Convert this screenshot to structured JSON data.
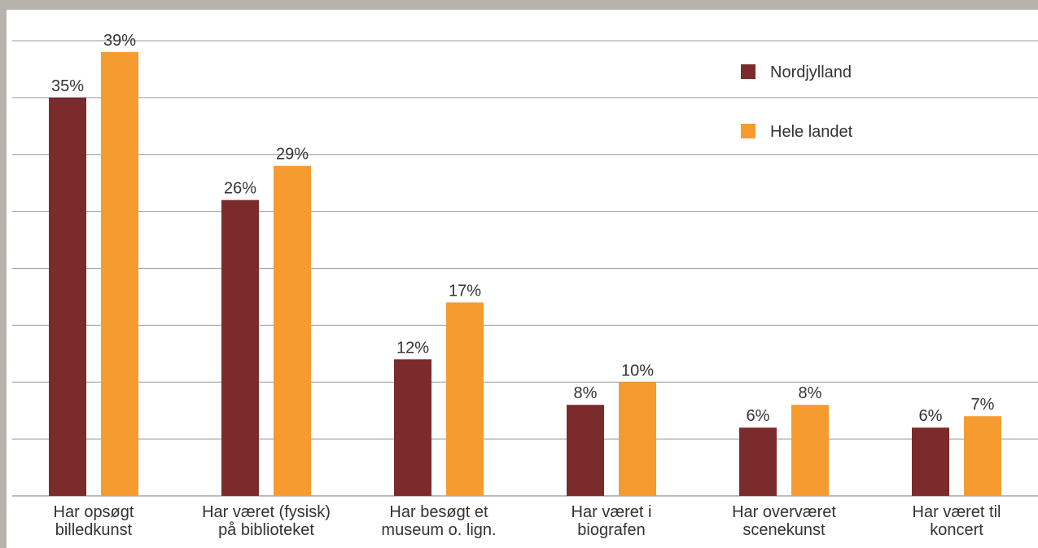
{
  "chart_data": {
    "type": "bar",
    "categories": [
      [
        "Har opsøgt",
        "billedkunst"
      ],
      [
        "Har været (fysisk)",
        "på biblioteket"
      ],
      [
        "Har besøgt et",
        "museum o. lign."
      ],
      [
        "Har været i",
        "biografen"
      ],
      [
        "Har overværet",
        "scenekunst"
      ],
      [
        "Har været til",
        "koncert"
      ]
    ],
    "series": [
      {
        "name": "Nordjylland",
        "color": "#7b2b2b",
        "values": [
          35,
          26,
          12,
          8,
          6,
          6
        ],
        "labels": [
          "35%",
          "26%",
          "12%",
          "8%",
          "6%",
          "6%"
        ]
      },
      {
        "name": "Hele landet",
        "color": "#f59b30",
        "values": [
          39,
          29,
          17,
          10,
          8,
          7
        ],
        "labels": [
          "39%",
          "29%",
          "17%",
          "10%",
          "8%",
          "7%"
        ]
      }
    ],
    "ylim": [
      0,
      40
    ],
    "grid_step": 5,
    "grid": true,
    "legend_position": "top-right",
    "title": "",
    "xlabel": "",
    "ylabel": ""
  }
}
